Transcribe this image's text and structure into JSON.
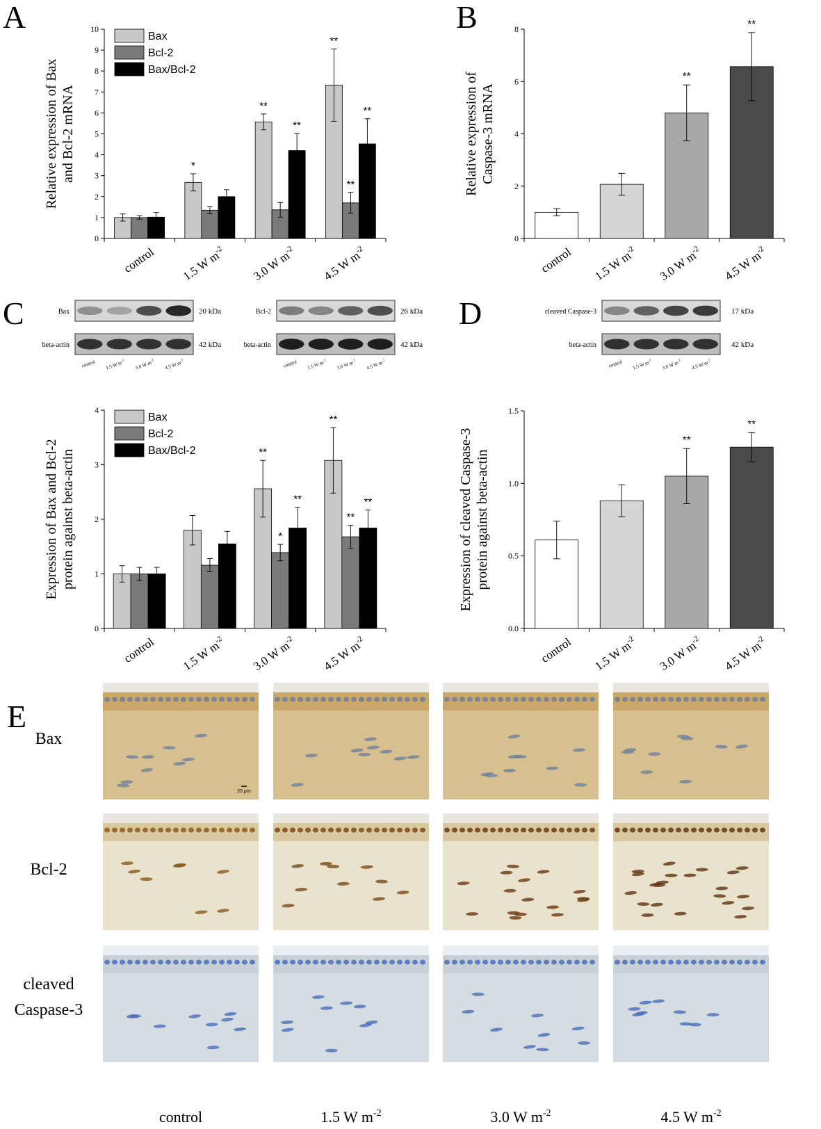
{
  "panels": {
    "A": "A",
    "B": "B",
    "C": "C",
    "D": "D",
    "E": "E"
  },
  "chart_data": [
    {
      "id": "A",
      "type": "bar",
      "ylabel": [
        "Relative expression of Bax",
        "and Bcl-2 mRNA"
      ],
      "ylim": [
        0,
        10
      ],
      "yticks": [
        "0",
        "1",
        "2",
        "3",
        "4",
        "5",
        "6",
        "7",
        "8",
        "9",
        "10"
      ],
      "categories": [
        "control",
        "1.5 W m",
        "3.0 W m",
        "4.5 W m"
      ],
      "category_superscript": [
        "",
        "-2",
        "-2",
        "-2"
      ],
      "legend": "top-left",
      "series": [
        {
          "name": "Bax",
          "color": "#c8c8c8",
          "values": [
            1.0,
            2.68,
            5.57,
            7.33
          ],
          "errors": [
            0.17,
            0.41,
            0.38,
            1.73
          ],
          "sig": [
            "",
            "*",
            "**",
            "**"
          ]
        },
        {
          "name": "Bcl-2",
          "color": "#7a7a7a",
          "values": [
            1.0,
            1.35,
            1.37,
            1.7
          ],
          "errors": [
            0.08,
            0.16,
            0.35,
            0.5
          ],
          "sig": [
            "",
            "",
            "",
            "**"
          ]
        },
        {
          "name": "Bax/Bcl-2",
          "color": "#000000",
          "values": [
            1.02,
            2.0,
            4.2,
            4.52
          ],
          "errors": [
            0.22,
            0.33,
            0.82,
            1.2
          ],
          "sig": [
            "",
            "",
            "**",
            "**"
          ]
        }
      ]
    },
    {
      "id": "B",
      "type": "bar",
      "ylabel": [
        "Relative expression of",
        "Caspase-3 mRNA"
      ],
      "ylim": [
        0,
        8
      ],
      "yticks": [
        "0",
        "2",
        "4",
        "6",
        "8"
      ],
      "categories": [
        "control",
        "1.5 W m",
        "3.0 W m",
        "4.5 W m"
      ],
      "category_superscript": [
        "",
        "-2",
        "-2",
        "-2"
      ],
      "values": [
        1.0,
        2.07,
        4.8,
        6.57
      ],
      "errors": [
        0.14,
        0.42,
        1.07,
        1.3
      ],
      "colors": [
        "#ffffff",
        "#d6d6d6",
        "#a8a8a8",
        "#4a4a4a"
      ],
      "sig": [
        "",
        "",
        "**",
        "**"
      ]
    },
    {
      "id": "C",
      "type": "bar",
      "ylabel": [
        "Expression of Bax and Bcl-2",
        "protein against beta-actin"
      ],
      "ylim": [
        0,
        4
      ],
      "yticks": [
        "0",
        "1",
        "2",
        "3",
        "4"
      ],
      "categories": [
        "control",
        "1.5 W m",
        "3.0 W m",
        "4.5 W m"
      ],
      "category_superscript": [
        "",
        "-2",
        "-2",
        "-2"
      ],
      "legend": "top-left",
      "series": [
        {
          "name": "Bax",
          "color": "#c8c8c8",
          "values": [
            1.0,
            1.8,
            2.56,
            3.08
          ],
          "errors": [
            0.15,
            0.27,
            0.52,
            0.6
          ],
          "sig": [
            "",
            "",
            "**",
            "**"
          ]
        },
        {
          "name": "Bcl-2",
          "color": "#7a7a7a",
          "values": [
            1.0,
            1.16,
            1.39,
            1.68
          ],
          "errors": [
            0.12,
            0.12,
            0.15,
            0.21
          ],
          "sig": [
            "",
            "",
            "*",
            "**"
          ]
        },
        {
          "name": "Bax/Bcl-2",
          "color": "#000000",
          "values": [
            1.0,
            1.55,
            1.84,
            1.84
          ],
          "errors": [
            0.12,
            0.23,
            0.38,
            0.33
          ],
          "sig": [
            "",
            "",
            "**",
            "**"
          ]
        }
      ]
    },
    {
      "id": "D",
      "type": "bar",
      "ylabel": [
        "Expression of cleaved Caspase-3",
        "protein against beta-actin"
      ],
      "ylim": [
        0,
        1.5
      ],
      "yticks": [
        "0.0",
        "0.5",
        "1.0",
        "1.5"
      ],
      "categories": [
        "control",
        "1.5 W m",
        "3.0 W m",
        "4.5 W m"
      ],
      "category_superscript": [
        "",
        "-2",
        "-2",
        "-2"
      ],
      "values": [
        0.61,
        0.88,
        1.05,
        1.25
      ],
      "errors": [
        0.13,
        0.11,
        0.19,
        0.1
      ],
      "colors": [
        "#ffffff",
        "#d6d6d6",
        "#a8a8a8",
        "#4a4a4a"
      ],
      "sig": [
        "",
        "",
        "**",
        "**"
      ]
    }
  ],
  "blots": {
    "lanes": [
      "control",
      "1.5 W m",
      "3.0 W m",
      "4.5 W m"
    ],
    "lane_superscript": "-2",
    "groups": [
      {
        "rows": [
          {
            "label": "Bax",
            "kda": "20 kDa"
          },
          {
            "label": "beta-actin",
            "kda": "42 kDa"
          }
        ]
      },
      {
        "rows": [
          {
            "label": "Bcl-2",
            "kda": "26 kDa"
          },
          {
            "label": "beta-actin",
            "kda": "42 kDa"
          }
        ]
      },
      {
        "rows": [
          {
            "label": "cleaved Caspase-3",
            "kda": "17 kDa"
          },
          {
            "label": "beta-actin",
            "kda": "42 kDa"
          }
        ]
      }
    ]
  },
  "ihc": {
    "rows": [
      "Bax",
      "Bcl-2",
      "cleaved",
      "Caspase-3"
    ],
    "columns": [
      "control",
      "1.5 W m",
      "3.0 W m",
      "4.5 W m"
    ],
    "column_superscript": "-2",
    "scale_bar": "20 μm"
  }
}
